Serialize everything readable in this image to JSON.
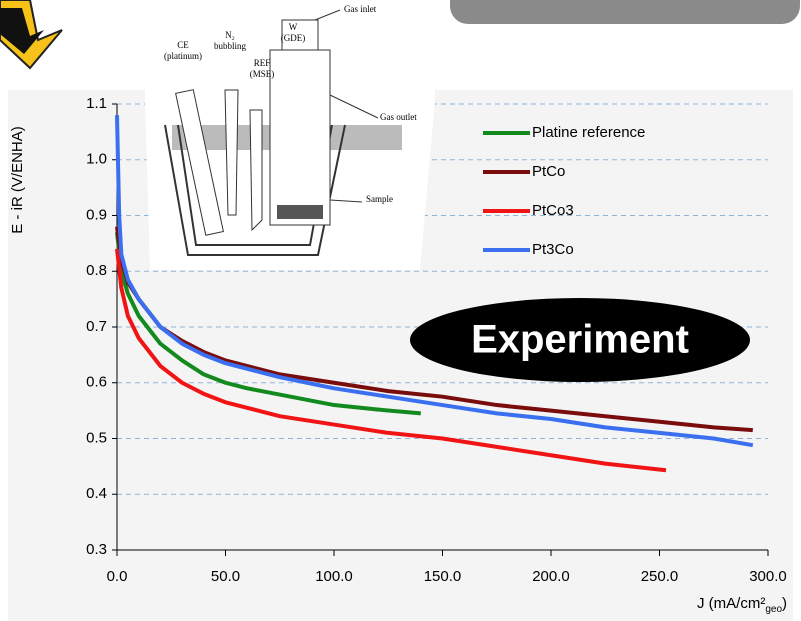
{
  "chart_data": {
    "type": "line",
    "x_label": {
      "main": "J (mA/cm²",
      "sub": "geo",
      "end": ")"
    },
    "y_label": "E - iR (V/ENHA)",
    "annotation": "Experiment",
    "xlim": [
      0,
      300
    ],
    "ylim": [
      0.3,
      1.1
    ],
    "xticks": [
      {
        "value": 0,
        "label": "0.0"
      },
      {
        "value": 50,
        "label": "50.0"
      },
      {
        "value": 100,
        "label": "100.0"
      },
      {
        "value": 150,
        "label": "150.0"
      },
      {
        "value": 200,
        "label": "200.0"
      },
      {
        "value": 250,
        "label": "250.0"
      },
      {
        "value": 300,
        "label": "300.0"
      }
    ],
    "yticks": [
      0.3,
      0.4,
      0.5,
      0.6,
      0.7,
      0.8,
      0.9,
      {
        "value": 1.0,
        "label": "1.0"
      },
      1.1
    ],
    "grid": true,
    "legend": "top-right",
    "series": [
      {
        "name": "Platine reference",
        "color": "#138a1e",
        "x": [
          0,
          2,
          5,
          10,
          20,
          30,
          40,
          50,
          60,
          80,
          100,
          120,
          140
        ],
        "values": [
          0.87,
          0.8,
          0.76,
          0.72,
          0.67,
          0.64,
          0.615,
          0.6,
          0.59,
          0.575,
          0.56,
          0.552,
          0.545
        ]
      },
      {
        "name": "PtCo",
        "color": "#7a0c0c",
        "x": [
          0,
          2,
          5,
          10,
          20,
          30,
          40,
          50,
          75,
          100,
          125,
          150,
          175,
          200,
          225,
          250,
          275,
          293
        ],
        "values": [
          0.88,
          0.82,
          0.78,
          0.75,
          0.7,
          0.675,
          0.655,
          0.64,
          0.615,
          0.6,
          0.585,
          0.575,
          0.56,
          0.55,
          0.54,
          0.53,
          0.52,
          0.515
        ]
      },
      {
        "name": "PtCo3",
        "color": "#f01414",
        "x": [
          0,
          2,
          5,
          10,
          20,
          30,
          40,
          50,
          75,
          100,
          125,
          150,
          175,
          200,
          225,
          253
        ],
        "values": [
          0.84,
          0.77,
          0.72,
          0.68,
          0.63,
          0.6,
          0.58,
          0.565,
          0.54,
          0.525,
          0.51,
          0.5,
          0.485,
          0.47,
          0.455,
          0.443
        ]
      },
      {
        "name": "Pt3Co",
        "color": "#3a6ff0",
        "x": [
          0,
          1,
          2,
          5,
          10,
          20,
          30,
          40,
          50,
          75,
          100,
          125,
          150,
          175,
          200,
          225,
          250,
          275,
          293
        ],
        "values": [
          1.08,
          0.9,
          0.83,
          0.785,
          0.75,
          0.7,
          0.67,
          0.65,
          0.635,
          0.61,
          0.59,
          0.575,
          0.56,
          0.545,
          0.535,
          0.52,
          0.51,
          0.5,
          0.488
        ]
      }
    ]
  },
  "diagram_labels": {
    "ce": "CE",
    "ce_sub": "(platinum)",
    "n2": "N₂",
    "n2_sub": "bubbling",
    "ref": "REF",
    "ref_sub": "(MSE)",
    "w": "W",
    "w_sub": "(GDE)",
    "gas_inlet": "Gas inlet",
    "gas_outlet": "Gas outlet",
    "sample": "Sample"
  }
}
